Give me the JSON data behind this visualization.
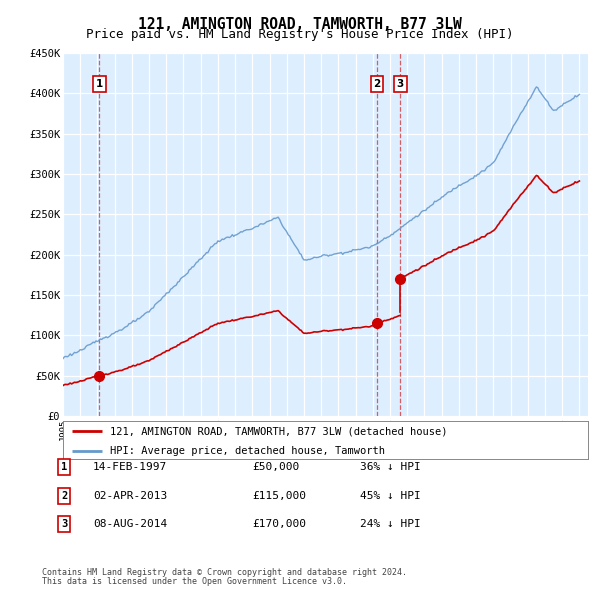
{
  "title": "121, AMINGTON ROAD, TAMWORTH, B77 3LW",
  "subtitle": "Price paid vs. HM Land Registry's House Price Index (HPI)",
  "ylim": [
    0,
    450000
  ],
  "yticks": [
    0,
    50000,
    100000,
    150000,
    200000,
    250000,
    300000,
    350000,
    400000,
    450000
  ],
  "ytick_labels": [
    "£0",
    "£50K",
    "£100K",
    "£150K",
    "£200K",
    "£250K",
    "£300K",
    "£350K",
    "£400K",
    "£450K"
  ],
  "xlim_start": 1995.0,
  "xlim_end": 2025.5,
  "transactions": [
    {
      "num": 1,
      "date_str": "14-FEB-1997",
      "year": 1997.12,
      "price": 50000,
      "pct": "36%",
      "dir": "↓"
    },
    {
      "num": 2,
      "date_str": "02-APR-2013",
      "year": 2013.25,
      "price": 115000,
      "pct": "45%",
      "dir": "↓"
    },
    {
      "num": 3,
      "date_str": "08-AUG-2014",
      "year": 2014.6,
      "price": 170000,
      "pct": "24%",
      "dir": "↓"
    }
  ],
  "legend_line1": "121, AMINGTON ROAD, TAMWORTH, B77 3LW (detached house)",
  "legend_line2": "HPI: Average price, detached house, Tamworth",
  "footer1": "Contains HM Land Registry data © Crown copyright and database right 2024.",
  "footer2": "This data is licensed under the Open Government Licence v3.0.",
  "bg_color": "#ddeeff",
  "red_color": "#cc0000",
  "blue_color": "#6699cc",
  "title_fontsize": 10.5,
  "subtitle_fontsize": 9
}
